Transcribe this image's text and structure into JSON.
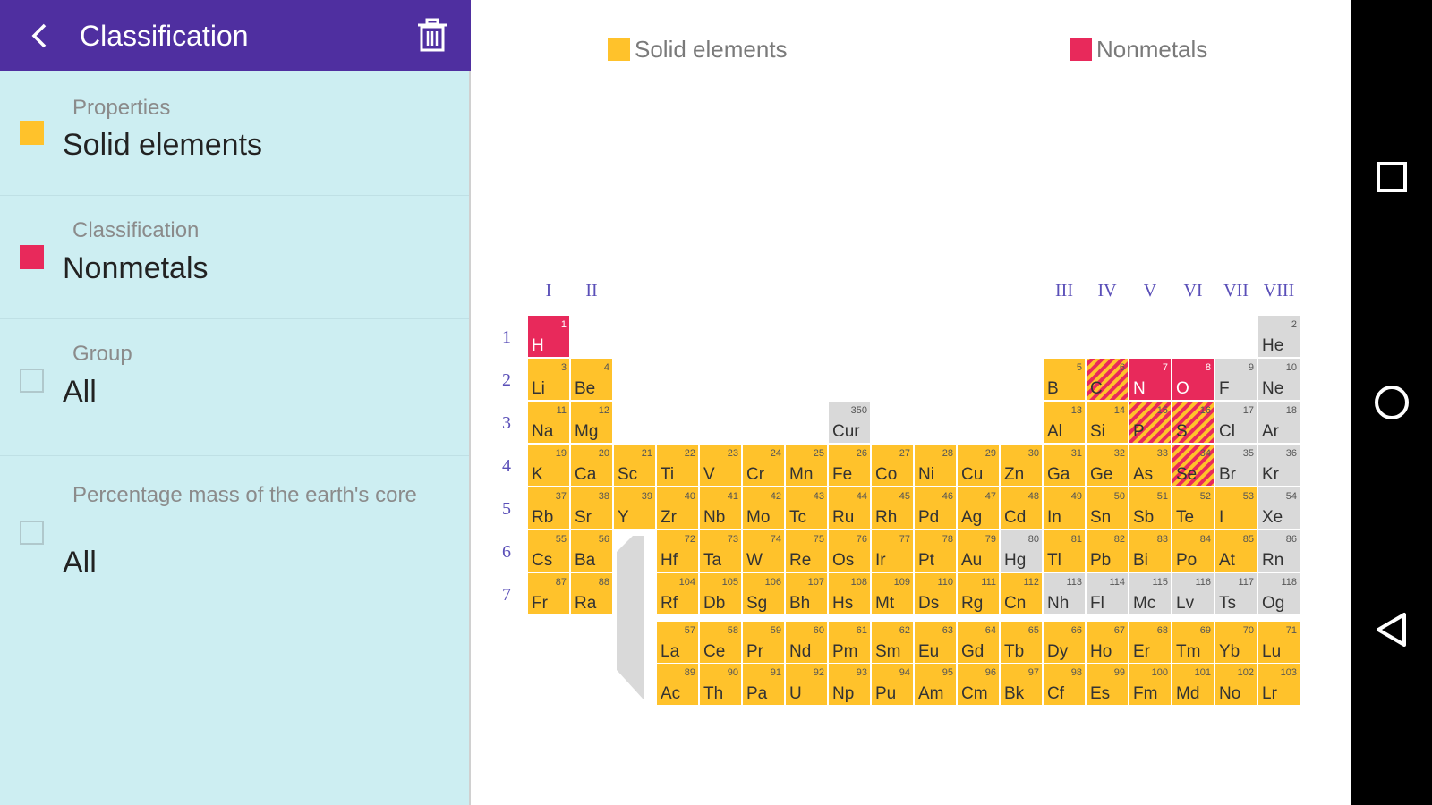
{
  "appbar": {
    "title": "Classification"
  },
  "filters": [
    {
      "label": "Properties",
      "value": "Solid elements",
      "swatch": "#ffc22b"
    },
    {
      "label": "Classification",
      "value": "Nonmetals",
      "swatch": "#e8295b"
    },
    {
      "label": "Group",
      "value": "All",
      "swatch": null
    },
    {
      "label": "Percentage mass of the earth's core",
      "value": "All",
      "swatch": null
    }
  ],
  "legend": [
    {
      "label": "Solid elements",
      "color": "#ffc22b"
    },
    {
      "label": "Nonmetals",
      "color": "#e8295b"
    }
  ],
  "colors": {
    "solid": "#ffc22b",
    "nonmetal": "#e8295b",
    "other": "#d9d9d9",
    "appbar": "#4f2fa0",
    "panel": "#cdeef2",
    "roman": "#5a4fb8"
  },
  "group_labels": [
    {
      "group": 1,
      "label": "I"
    },
    {
      "group": 2,
      "label": "II"
    },
    {
      "group": 13,
      "label": "III"
    },
    {
      "group": 14,
      "label": "IV"
    },
    {
      "group": 15,
      "label": "V"
    },
    {
      "group": 16,
      "label": "VI"
    },
    {
      "group": 17,
      "label": "VII"
    },
    {
      "group": 18,
      "label": "VIII"
    }
  ],
  "period_labels": [
    "1",
    "2",
    "3",
    "4",
    "5",
    "6",
    "7"
  ],
  "elements": [
    {
      "num": "1",
      "sym": "H",
      "period": 1,
      "group": 1,
      "state": "nonmetal"
    },
    {
      "num": "2",
      "sym": "He",
      "period": 1,
      "group": 18,
      "state": "other"
    },
    {
      "num": "3",
      "sym": "Li",
      "period": 2,
      "group": 1,
      "state": "solid"
    },
    {
      "num": "4",
      "sym": "Be",
      "period": 2,
      "group": 2,
      "state": "solid"
    },
    {
      "num": "5",
      "sym": "B",
      "period": 2,
      "group": 13,
      "state": "solid"
    },
    {
      "num": "6",
      "sym": "C",
      "period": 2,
      "group": 14,
      "state": "both"
    },
    {
      "num": "7",
      "sym": "N",
      "period": 2,
      "group": 15,
      "state": "nonmetal"
    },
    {
      "num": "8",
      "sym": "O",
      "period": 2,
      "group": 16,
      "state": "nonmetal"
    },
    {
      "num": "9",
      "sym": "F",
      "period": 2,
      "group": 17,
      "state": "other"
    },
    {
      "num": "10",
      "sym": "Ne",
      "period": 2,
      "group": 18,
      "state": "other"
    },
    {
      "num": "11",
      "sym": "Na",
      "period": 3,
      "group": 1,
      "state": "solid"
    },
    {
      "num": "12",
      "sym": "Mg",
      "period": 3,
      "group": 2,
      "state": "solid"
    },
    {
      "num": "350",
      "sym": "Cur",
      "period": 3,
      "group": 8,
      "state": "other"
    },
    {
      "num": "13",
      "sym": "Al",
      "period": 3,
      "group": 13,
      "state": "solid"
    },
    {
      "num": "14",
      "sym": "Si",
      "period": 3,
      "group": 14,
      "state": "solid"
    },
    {
      "num": "15",
      "sym": "P",
      "period": 3,
      "group": 15,
      "state": "both"
    },
    {
      "num": "16",
      "sym": "S",
      "period": 3,
      "group": 16,
      "state": "both"
    },
    {
      "num": "17",
      "sym": "Cl",
      "period": 3,
      "group": 17,
      "state": "other"
    },
    {
      "num": "18",
      "sym": "Ar",
      "period": 3,
      "group": 18,
      "state": "other"
    },
    {
      "num": "19",
      "sym": "K",
      "period": 4,
      "group": 1,
      "state": "solid"
    },
    {
      "num": "20",
      "sym": "Ca",
      "period": 4,
      "group": 2,
      "state": "solid"
    },
    {
      "num": "21",
      "sym": "Sc",
      "period": 4,
      "group": 3,
      "state": "solid"
    },
    {
      "num": "22",
      "sym": "Ti",
      "period": 4,
      "group": 4,
      "state": "solid"
    },
    {
      "num": "23",
      "sym": "V",
      "period": 4,
      "group": 5,
      "state": "solid"
    },
    {
      "num": "24",
      "sym": "Cr",
      "period": 4,
      "group": 6,
      "state": "solid"
    },
    {
      "num": "25",
      "sym": "Mn",
      "period": 4,
      "group": 7,
      "state": "solid"
    },
    {
      "num": "26",
      "sym": "Fe",
      "period": 4,
      "group": 8,
      "state": "solid"
    },
    {
      "num": "27",
      "sym": "Co",
      "period": 4,
      "group": 9,
      "state": "solid"
    },
    {
      "num": "28",
      "sym": "Ni",
      "period": 4,
      "group": 10,
      "state": "solid"
    },
    {
      "num": "29",
      "sym": "Cu",
      "period": 4,
      "group": 11,
      "state": "solid"
    },
    {
      "num": "30",
      "sym": "Zn",
      "period": 4,
      "group": 12,
      "state": "solid"
    },
    {
      "num": "31",
      "sym": "Ga",
      "period": 4,
      "group": 13,
      "state": "solid"
    },
    {
      "num": "32",
      "sym": "Ge",
      "period": 4,
      "group": 14,
      "state": "solid"
    },
    {
      "num": "33",
      "sym": "As",
      "period": 4,
      "group": 15,
      "state": "solid"
    },
    {
      "num": "34",
      "sym": "Se",
      "period": 4,
      "group": 16,
      "state": "both"
    },
    {
      "num": "35",
      "sym": "Br",
      "period": 4,
      "group": 17,
      "state": "other"
    },
    {
      "num": "36",
      "sym": "Kr",
      "period": 4,
      "group": 18,
      "state": "other"
    },
    {
      "num": "37",
      "sym": "Rb",
      "period": 5,
      "group": 1,
      "state": "solid"
    },
    {
      "num": "38",
      "sym": "Sr",
      "period": 5,
      "group": 2,
      "state": "solid"
    },
    {
      "num": "39",
      "sym": "Y",
      "period": 5,
      "group": 3,
      "state": "solid"
    },
    {
      "num": "40",
      "sym": "Zr",
      "period": 5,
      "group": 4,
      "state": "solid"
    },
    {
      "num": "41",
      "sym": "Nb",
      "period": 5,
      "group": 5,
      "state": "solid"
    },
    {
      "num": "42",
      "sym": "Mo",
      "period": 5,
      "group": 6,
      "state": "solid"
    },
    {
      "num": "43",
      "sym": "Tc",
      "period": 5,
      "group": 7,
      "state": "solid"
    },
    {
      "num": "44",
      "sym": "Ru",
      "period": 5,
      "group": 8,
      "state": "solid"
    },
    {
      "num": "45",
      "sym": "Rh",
      "period": 5,
      "group": 9,
      "state": "solid"
    },
    {
      "num": "46",
      "sym": "Pd",
      "period": 5,
      "group": 10,
      "state": "solid"
    },
    {
      "num": "47",
      "sym": "Ag",
      "period": 5,
      "group": 11,
      "state": "solid"
    },
    {
      "num": "48",
      "sym": "Cd",
      "period": 5,
      "group": 12,
      "state": "solid"
    },
    {
      "num": "49",
      "sym": "In",
      "period": 5,
      "group": 13,
      "state": "solid"
    },
    {
      "num": "50",
      "sym": "Sn",
      "period": 5,
      "group": 14,
      "state": "solid"
    },
    {
      "num": "51",
      "sym": "Sb",
      "period": 5,
      "group": 15,
      "state": "solid"
    },
    {
      "num": "52",
      "sym": "Te",
      "period": 5,
      "group": 16,
      "state": "solid"
    },
    {
      "num": "53",
      "sym": "I",
      "period": 5,
      "group": 17,
      "state": "solid"
    },
    {
      "num": "54",
      "sym": "Xe",
      "period": 5,
      "group": 18,
      "state": "other"
    },
    {
      "num": "55",
      "sym": "Cs",
      "period": 6,
      "group": 1,
      "state": "solid"
    },
    {
      "num": "56",
      "sym": "Ba",
      "period": 6,
      "group": 2,
      "state": "solid"
    },
    {
      "num": "72",
      "sym": "Hf",
      "period": 6,
      "group": 4,
      "state": "solid"
    },
    {
      "num": "73",
      "sym": "Ta",
      "period": 6,
      "group": 5,
      "state": "solid"
    },
    {
      "num": "74",
      "sym": "W",
      "period": 6,
      "group": 6,
      "state": "solid"
    },
    {
      "num": "75",
      "sym": "Re",
      "period": 6,
      "group": 7,
      "state": "solid"
    },
    {
      "num": "76",
      "sym": "Os",
      "period": 6,
      "group": 8,
      "state": "solid"
    },
    {
      "num": "77",
      "sym": "Ir",
      "period": 6,
      "group": 9,
      "state": "solid"
    },
    {
      "num": "78",
      "sym": "Pt",
      "period": 6,
      "group": 10,
      "state": "solid"
    },
    {
      "num": "79",
      "sym": "Au",
      "period": 6,
      "group": 11,
      "state": "solid"
    },
    {
      "num": "80",
      "sym": "Hg",
      "period": 6,
      "group": 12,
      "state": "other"
    },
    {
      "num": "81",
      "sym": "Tl",
      "period": 6,
      "group": 13,
      "state": "solid"
    },
    {
      "num": "82",
      "sym": "Pb",
      "period": 6,
      "group": 14,
      "state": "solid"
    },
    {
      "num": "83",
      "sym": "Bi",
      "period": 6,
      "group": 15,
      "state": "solid"
    },
    {
      "num": "84",
      "sym": "Po",
      "period": 6,
      "group": 16,
      "state": "solid"
    },
    {
      "num": "85",
      "sym": "At",
      "period": 6,
      "group": 17,
      "state": "solid"
    },
    {
      "num": "86",
      "sym": "Rn",
      "period": 6,
      "group": 18,
      "state": "other"
    },
    {
      "num": "87",
      "sym": "Fr",
      "period": 7,
      "group": 1,
      "state": "solid"
    },
    {
      "num": "88",
      "sym": "Ra",
      "period": 7,
      "group": 2,
      "state": "solid"
    },
    {
      "num": "104",
      "sym": "Rf",
      "period": 7,
      "group": 4,
      "state": "solid"
    },
    {
      "num": "105",
      "sym": "Db",
      "period": 7,
      "group": 5,
      "state": "solid"
    },
    {
      "num": "106",
      "sym": "Sg",
      "period": 7,
      "group": 6,
      "state": "solid"
    },
    {
      "num": "107",
      "sym": "Bh",
      "period": 7,
      "group": 7,
      "state": "solid"
    },
    {
      "num": "108",
      "sym": "Hs",
      "period": 7,
      "group": 8,
      "state": "solid"
    },
    {
      "num": "109",
      "sym": "Mt",
      "period": 7,
      "group": 9,
      "state": "solid"
    },
    {
      "num": "110",
      "sym": "Ds",
      "period": 7,
      "group": 10,
      "state": "solid"
    },
    {
      "num": "111",
      "sym": "Rg",
      "period": 7,
      "group": 11,
      "state": "solid"
    },
    {
      "num": "112",
      "sym": "Cn",
      "period": 7,
      "group": 12,
      "state": "solid"
    },
    {
      "num": "113",
      "sym": "Nh",
      "period": 7,
      "group": 13,
      "state": "other"
    },
    {
      "num": "114",
      "sym": "Fl",
      "period": 7,
      "group": 14,
      "state": "other"
    },
    {
      "num": "115",
      "sym": "Mc",
      "period": 7,
      "group": 15,
      "state": "other"
    },
    {
      "num": "116",
      "sym": "Lv",
      "period": 7,
      "group": 16,
      "state": "other"
    },
    {
      "num": "117",
      "sym": "Ts",
      "period": 7,
      "group": 17,
      "state": "other"
    },
    {
      "num": "118",
      "sym": "Og",
      "period": 7,
      "group": 18,
      "state": "other"
    }
  ],
  "lanthanides": [
    {
      "num": "57",
      "sym": "La"
    },
    {
      "num": "58",
      "sym": "Ce"
    },
    {
      "num": "59",
      "sym": "Pr"
    },
    {
      "num": "60",
      "sym": "Nd"
    },
    {
      "num": "61",
      "sym": "Pm"
    },
    {
      "num": "62",
      "sym": "Sm"
    },
    {
      "num": "63",
      "sym": "Eu"
    },
    {
      "num": "64",
      "sym": "Gd"
    },
    {
      "num": "65",
      "sym": "Tb"
    },
    {
      "num": "66",
      "sym": "Dy"
    },
    {
      "num": "67",
      "sym": "Ho"
    },
    {
      "num": "68",
      "sym": "Er"
    },
    {
      "num": "69",
      "sym": "Tm"
    },
    {
      "num": "70",
      "sym": "Yb"
    },
    {
      "num": "71",
      "sym": "Lu"
    }
  ],
  "actinides": [
    {
      "num": "89",
      "sym": "Ac"
    },
    {
      "num": "90",
      "sym": "Th"
    },
    {
      "num": "91",
      "sym": "Pa"
    },
    {
      "num": "92",
      "sym": "U"
    },
    {
      "num": "93",
      "sym": "Np"
    },
    {
      "num": "94",
      "sym": "Pu"
    },
    {
      "num": "95",
      "sym": "Am"
    },
    {
      "num": "96",
      "sym": "Cm"
    },
    {
      "num": "97",
      "sym": "Bk"
    },
    {
      "num": "98",
      "sym": "Cf"
    },
    {
      "num": "99",
      "sym": "Es"
    },
    {
      "num": "100",
      "sym": "Fm"
    },
    {
      "num": "101",
      "sym": "Md"
    },
    {
      "num": "102",
      "sym": "No"
    },
    {
      "num": "103",
      "sym": "Lr"
    }
  ],
  "navbar": {
    "buttons": [
      "recents-icon",
      "home-icon",
      "back-icon"
    ]
  }
}
